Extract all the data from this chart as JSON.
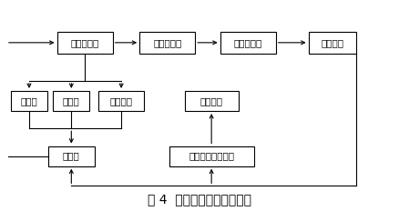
{
  "title": "图 4  称量定量检测控制装置",
  "title_fontsize": 10,
  "background_color": "#ffffff",
  "font_size": 7.5,
  "boxes": {
    "称检控规板": [
      0.2,
      0.82,
      0.145,
      0.1
    ],
    "检测传感器": [
      0.41,
      0.82,
      0.145,
      0.1
    ],
    "电子放大器": [
      0.62,
      0.82,
      0.145,
      0.1
    ],
    "控制系统": [
      0.83,
      0.82,
      0.13,
      0.1
    ],
    "粗加料": [
      0.055,
      0.545,
      0.095,
      0.095
    ],
    "细加料": [
      0.165,
      0.545,
      0.095,
      0.095
    ],
    "停止给料": [
      0.29,
      0.545,
      0.12,
      0.095
    ],
    "排放物品": [
      0.53,
      0.545,
      0.14,
      0.095
    ],
    "给料机": [
      0.165,
      0.285,
      0.12,
      0.095
    ],
    "排料活门开闭机构": [
      0.53,
      0.285,
      0.22,
      0.095
    ]
  }
}
